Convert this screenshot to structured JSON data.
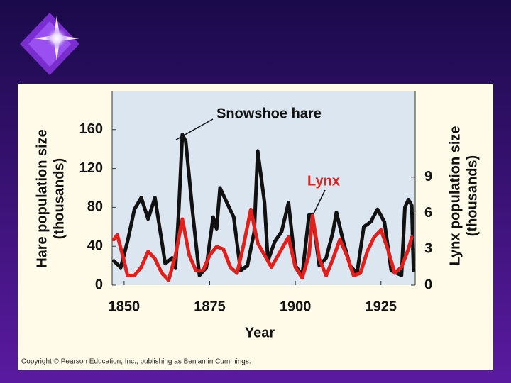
{
  "chart_data": {
    "type": "line",
    "xlabel": "Year",
    "ylabel": [
      "Hare population size",
      "(thousands)"
    ],
    "y2label": [
      "Lynx population size",
      "(thousands)"
    ],
    "xlim": [
      1846.5,
      1935
    ],
    "ylim": [
      0,
      200
    ],
    "y2lim": [
      0,
      16.2
    ],
    "xticks": [
      1850,
      1875,
      1900,
      1925
    ],
    "yticks": [
      0,
      40,
      80,
      120,
      160
    ],
    "y2ticks": [
      0,
      3,
      6,
      9
    ],
    "grid": false,
    "series": [
      {
        "name": "Snowshoe hare",
        "color": "#111111",
        "x": [
          1847,
          1849,
          1851,
          1853,
          1855,
          1857,
          1859,
          1861,
          1862,
          1864,
          1865,
          1866,
          1867,
          1868,
          1870,
          1872,
          1874,
          1876,
          1877,
          1878,
          1880,
          1882,
          1884,
          1886,
          1888,
          1889,
          1891,
          1892,
          1894,
          1896,
          1898,
          1900,
          1902,
          1904,
          1905,
          1907,
          1909,
          1911,
          1912,
          1914,
          1916,
          1918,
          1920,
          1922,
          1924,
          1926,
          1928,
          1931,
          1932,
          1933,
          1934,
          1934.5
        ],
        "values": [
          25,
          18,
          45,
          78,
          90,
          68,
          90,
          45,
          22,
          28,
          18,
          80,
          155,
          148,
          75,
          10,
          18,
          70,
          58,
          100,
          85,
          70,
          15,
          20,
          55,
          138,
          85,
          25,
          45,
          55,
          85,
          20,
          10,
          72,
          72,
          20,
          28,
          55,
          75,
          45,
          20,
          12,
          60,
          65,
          78,
          65,
          15,
          10,
          80,
          88,
          82,
          15
        ]
      },
      {
        "name": "Lynx",
        "color": "#e0201c",
        "axis": "y2",
        "x": [
          1847,
          1848,
          1850,
          1851,
          1853,
          1855,
          1857,
          1859,
          1861,
          1863,
          1865,
          1867,
          1869,
          1871,
          1873,
          1875,
          1877,
          1879,
          1881,
          1883,
          1885,
          1887,
          1889,
          1891,
          1893,
          1895,
          1898,
          1900,
          1902,
          1904,
          1905,
          1907,
          1909,
          1911,
          1913,
          1915,
          1917,
          1919,
          1921,
          1923,
          1925,
          1927,
          1929,
          1931,
          1933,
          1934
        ],
        "values": [
          3.8,
          4.2,
          2,
          0.8,
          0.8,
          1.5,
          2.8,
          2.2,
          1,
          0.4,
          2.5,
          5.5,
          2.5,
          1.2,
          1.2,
          2.5,
          3.2,
          3,
          1.5,
          1,
          3.5,
          6.3,
          3.5,
          2.5,
          1.5,
          2.5,
          4,
          1.5,
          0.6,
          2.5,
          5.8,
          2.2,
          0.8,
          2.2,
          3.8,
          2.5,
          0.8,
          1,
          2.8,
          4,
          4.6,
          3,
          1,
          1.5,
          3,
          4
        ]
      }
    ],
    "source": "Copyright © Pearson Education, Inc., publishing as Benjamin Cummings."
  }
}
